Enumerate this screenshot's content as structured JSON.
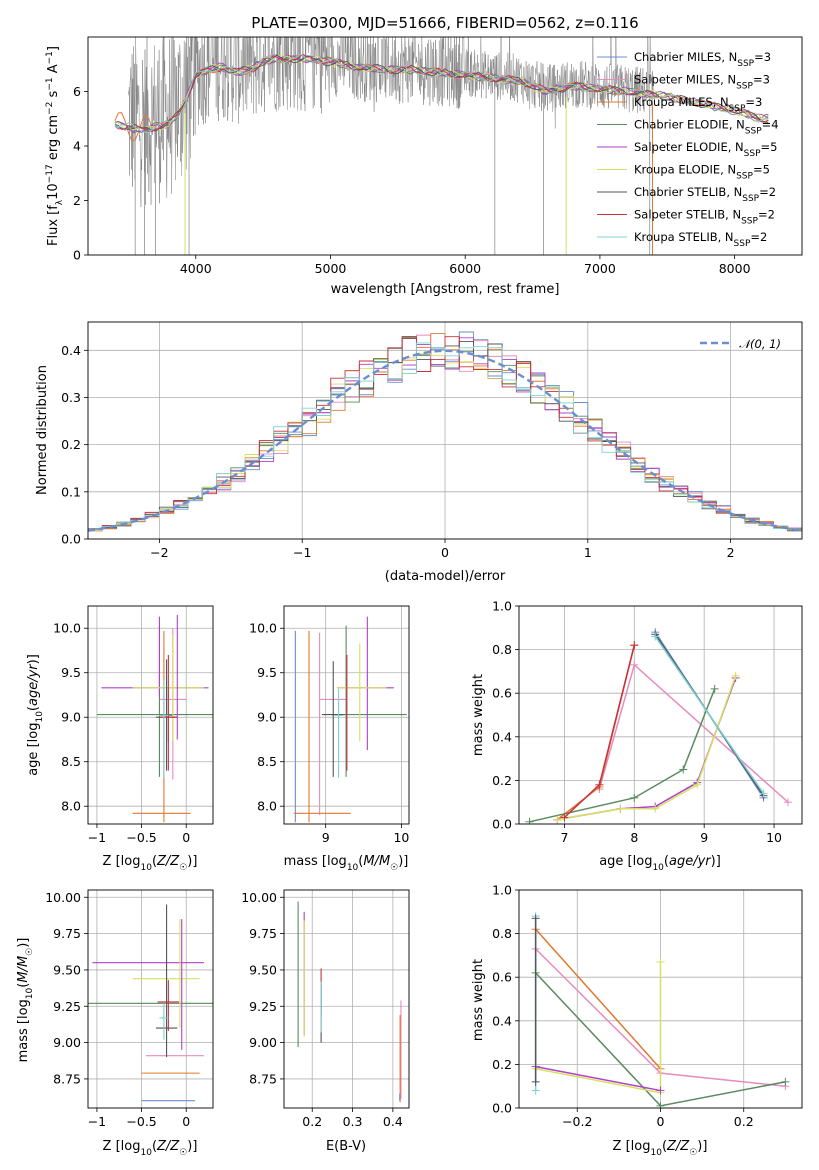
{
  "figure": {
    "title": "PLATE=0300, MJD=51666, FIBERID=0562, z=0.116"
  },
  "colors": {
    "chabrier_miles": "#6a8fd0",
    "salpeter_miles": "#e88bbd",
    "kroupa_miles": "#e0782f",
    "chabrier_elodie": "#5a8a5f",
    "salpeter_elodie": "#b040c8",
    "kroupa_elodie": "#d6e060",
    "chabrier_stelib": "#555555",
    "salpeter_stelib": "#c8323c",
    "kroupa_stelib": "#7fd0d0",
    "data": "#808080",
    "gaussian": "#6a8fd0",
    "grid": "#b0b0b0"
  },
  "chart_data": [
    {
      "id": "spectrum",
      "type": "line",
      "xlabel": "wavelength [Angstrom, rest frame]",
      "ylabel": "Flux [f_λ10^{-17} erg cm^{-2} s^{-1} A^{-1}]",
      "xlim": [
        3200,
        8500
      ],
      "ylim": [
        0,
        8
      ],
      "xticks": [
        4000,
        5000,
        6000,
        7000,
        8000
      ],
      "yticks": [
        0,
        2,
        4,
        6
      ],
      "legend_position": "right",
      "legend": [
        {
          "label": "Chabrier MILES, N",
          "sub": "SSP",
          "suffix": "=3"
        },
        {
          "label": "Salpeter MILES, N",
          "sub": "SSP",
          "suffix": "=3"
        },
        {
          "label": "Kroupa MILES, N",
          "sub": "SSP",
          "suffix": "=3"
        },
        {
          "label": "Chabrier ELODIE, N",
          "sub": "SSP",
          "suffix": "=4"
        },
        {
          "label": "Salpeter ELODIE, N",
          "sub": "SSP",
          "suffix": "=5"
        },
        {
          "label": "Kroupa ELODIE, N",
          "sub": "SSP",
          "suffix": "=5"
        },
        {
          "label": "Chabrier STELIB, N",
          "sub": "SSP",
          "suffix": "=2"
        },
        {
          "label": "Salpeter STELIB, N",
          "sub": "SSP",
          "suffix": "=2"
        },
        {
          "label": "Kroupa STELIB, N",
          "sub": "SSP",
          "suffix": "=2"
        }
      ],
      "data_range": [
        3500,
        7400
      ],
      "model_continuum": {
        "x": [
          3400,
          3500,
          3600,
          3700,
          3800,
          3900,
          4000,
          4100,
          4200,
          4300,
          4400,
          4500,
          4600,
          4800,
          5000,
          5200,
          5400,
          5600,
          5800,
          6000,
          6200,
          6400,
          6600,
          6800,
          7000,
          7200,
          7400,
          7600,
          7800,
          8000,
          8200
        ],
        "y": [
          4.8,
          4.7,
          4.6,
          4.7,
          4.8,
          5.4,
          6.6,
          6.8,
          6.9,
          6.7,
          6.8,
          7.1,
          7.2,
          7.2,
          7.1,
          6.9,
          6.8,
          6.8,
          6.7,
          6.6,
          6.5,
          6.4,
          6.0,
          6.2,
          6.1,
          6.0,
          5.9,
          5.7,
          5.5,
          5.3,
          5.0
        ]
      }
    },
    {
      "id": "residuals",
      "type": "line",
      "xlabel": "(data-model)/error",
      "ylabel": "Normed distribution",
      "xlim": [
        -2.5,
        2.5
      ],
      "ylim": [
        0,
        0.46
      ],
      "xticks": [
        -2,
        -1,
        0,
        1,
        2
      ],
      "yticks": [
        0.0,
        0.1,
        0.2,
        0.3,
        0.4
      ],
      "legend": [
        {
          "label": "𝒩(0, 1)"
        }
      ],
      "legend_position": "top-right"
    },
    {
      "id": "age-z",
      "type": "scatter",
      "xlabel": "Z [log10(Z/Z☉)]",
      "ylabel": "age [log10(age/yr)]",
      "xlim": [
        -1.1,
        0.3
      ],
      "ylim": [
        7.8,
        10.25
      ],
      "xticks": [
        -1.0,
        -0.5,
        0.0
      ],
      "yticks": [
        8.0,
        8.5,
        9.0,
        9.5,
        10.0
      ]
    },
    {
      "id": "age-mass",
      "type": "scatter",
      "xlabel": "mass [log10(M/M☉)]",
      "xlim": [
        8.45,
        10.1
      ],
      "ylim": [
        7.8,
        10.25
      ],
      "xticks": [
        9,
        10
      ],
      "yticks": [
        8.0,
        8.5,
        9.0,
        9.5,
        10.0
      ]
    },
    {
      "id": "weight-age",
      "type": "line",
      "xlabel": "age [log10(age/yr)]",
      "ylabel": "mass weight",
      "xlim": [
        6.35,
        10.4
      ],
      "ylim": [
        0,
        1.0
      ],
      "xticks": [
        7,
        8,
        9,
        10
      ],
      "yticks": [
        0.0,
        0.2,
        0.4,
        0.6,
        0.8,
        1.0
      ],
      "series": [
        {
          "color": "chabrier_miles",
          "x": [
            8.3,
            9.85
          ],
          "y": [
            0.88,
            0.12
          ]
        },
        {
          "color": "salpeter_miles",
          "x": [
            7.5,
            8.0,
            10.2
          ],
          "y": [
            0.16,
            0.73,
            0.1
          ]
        },
        {
          "color": "kroupa_miles",
          "x": [
            6.9,
            7.5,
            8.0
          ],
          "y": [
            0.02,
            0.17,
            0.82
          ]
        },
        {
          "color": "chabrier_elodie",
          "x": [
            6.5,
            8.0,
            8.7,
            9.15
          ],
          "y": [
            0.01,
            0.12,
            0.25,
            0.62
          ]
        },
        {
          "color": "salpeter_elodie",
          "x": [
            6.9,
            7.8,
            8.3,
            8.9,
            9.45
          ],
          "y": [
            0.02,
            0.07,
            0.08,
            0.19,
            0.67
          ]
        },
        {
          "color": "kroupa_elodie",
          "x": [
            6.9,
            7.8,
            8.3,
            8.9,
            9.45
          ],
          "y": [
            0.02,
            0.07,
            0.07,
            0.18,
            0.68
          ]
        },
        {
          "color": "chabrier_stelib",
          "x": [
            8.3,
            9.85
          ],
          "y": [
            0.87,
            0.13
          ]
        },
        {
          "color": "salpeter_stelib",
          "x": [
            7.0,
            7.5,
            8.0
          ],
          "y": [
            0.03,
            0.18,
            0.82
          ]
        },
        {
          "color": "kroupa_stelib",
          "x": [
            8.3,
            9.85
          ],
          "y": [
            0.86,
            0.14
          ]
        }
      ]
    },
    {
      "id": "mass-z",
      "type": "scatter",
      "xlabel": "Z [log10(Z/Z☉)]",
      "ylabel": "mass [log10(M/M☉)]",
      "xlim": [
        -1.1,
        0.3
      ],
      "ylim": [
        8.55,
        10.05
      ],
      "xticks": [
        -1.0,
        -0.5,
        0.0
      ],
      "yticks": [
        8.75,
        9.0,
        9.25,
        9.5,
        9.75,
        10.0
      ]
    },
    {
      "id": "mass-ebv",
      "type": "scatter",
      "xlabel": "E(B-V)",
      "xlim": [
        0.13,
        0.44
      ],
      "ylim": [
        8.55,
        10.05
      ],
      "xticks": [
        0.2,
        0.3,
        0.4
      ],
      "yticks": [
        8.75,
        9.0,
        9.25,
        9.5,
        9.75,
        10.0
      ]
    },
    {
      "id": "weight-z",
      "type": "line",
      "xlabel": "Z [log10(Z/Z☉)]",
      "ylabel": "mass weight",
      "xlim": [
        -0.34,
        0.34
      ],
      "ylim": [
        0,
        1.0
      ],
      "xticks": [
        -0.2,
        0.0,
        0.2
      ],
      "yticks": [
        0.0,
        0.2,
        0.4,
        0.6,
        0.8,
        1.0
      ],
      "series": [
        {
          "color": "salpeter_miles",
          "x": [
            -0.3,
            0.0,
            0.3
          ],
          "y": [
            0.73,
            0.16,
            0.1
          ]
        },
        {
          "color": "kroupa_miles",
          "x": [
            -0.3,
            0.0
          ],
          "y": [
            0.82,
            0.18
          ]
        },
        {
          "color": "chabrier_elodie",
          "x": [
            -0.3,
            0.0,
            0.3
          ],
          "y": [
            0.62,
            0.01,
            0.12
          ]
        },
        {
          "color": "kroupa_elodie",
          "x": [
            -0.3,
            0.0,
            0.0
          ],
          "y": [
            0.18,
            0.07,
            0.67
          ]
        },
        {
          "color": "salpeter_elodie",
          "x": [
            -0.3,
            0.0
          ],
          "y": [
            0.19,
            0.08
          ]
        },
        {
          "color": "kroupa_stelib",
          "x": [
            -0.3,
            -0.3
          ],
          "y": [
            0.88,
            0.08
          ]
        },
        {
          "color": "chabrier_stelib",
          "x": [
            -0.3,
            -0.3
          ],
          "y": [
            0.87,
            0.12
          ]
        }
      ]
    }
  ]
}
